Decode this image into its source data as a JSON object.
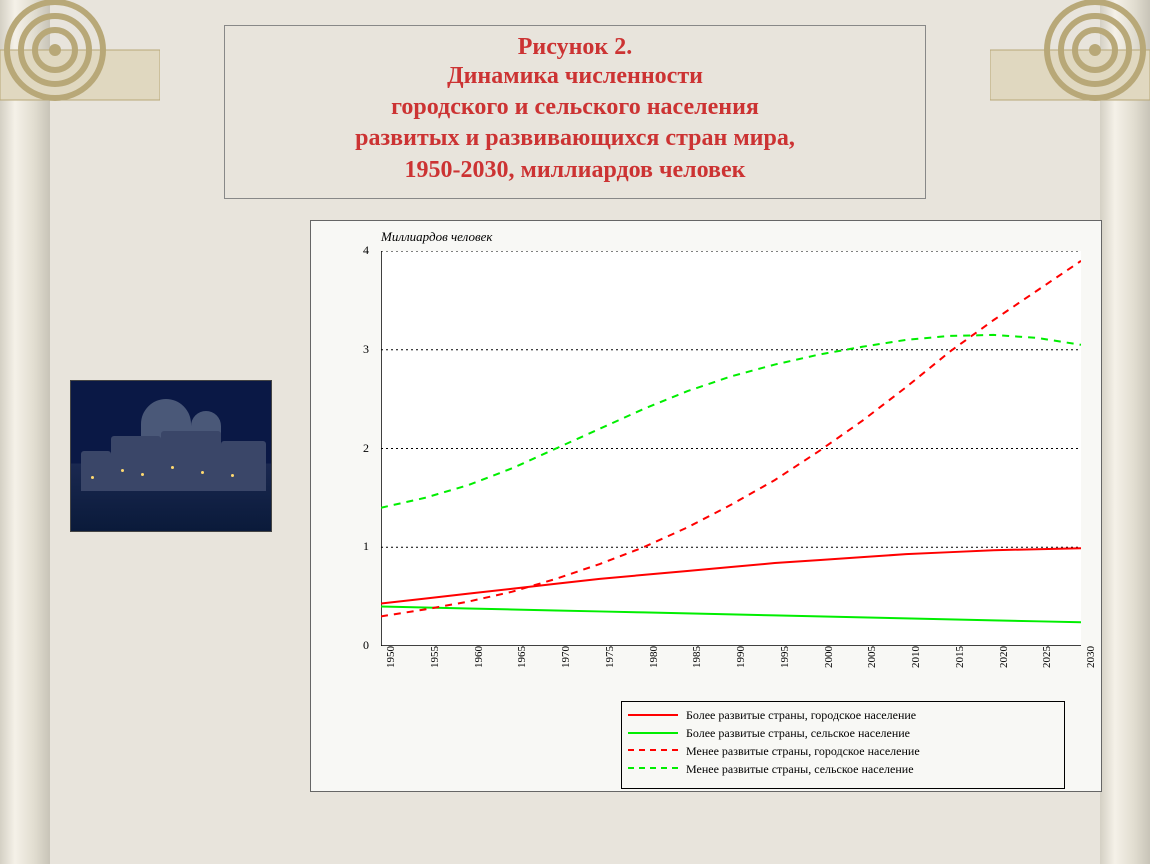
{
  "title": {
    "figure_num": "Рисунок 2.",
    "lines": [
      "Динамика численности",
      "городского и сельского населения",
      "развитых и развивающихся стран мира,",
      "1950-2030, миллиардов человек"
    ],
    "color": "#cc3333",
    "fontsize": 24,
    "fontweight": "bold"
  },
  "chart": {
    "type": "line",
    "y_axis_label": "Миллиардов человек",
    "y_axis_label_fontsize": 13,
    "y_axis_label_style": "italic",
    "xlim": [
      1950,
      2030
    ],
    "ylim": [
      0,
      4
    ],
    "xtick_step": 5,
    "ytick_step": 1,
    "xticks": [
      1950,
      1955,
      1960,
      1965,
      1970,
      1975,
      1980,
      1985,
      1990,
      1995,
      2000,
      2005,
      2010,
      2015,
      2020,
      2025,
      2030
    ],
    "yticks": [
      0,
      1,
      2,
      3,
      4
    ],
    "grid_color": "#000000",
    "grid_dash": "2,3",
    "axis_color": "#000000",
    "background_color": "#ffffff",
    "line_width": 2,
    "tick_fontsize": 12,
    "series": [
      {
        "name": "Более развитые страны, городское население",
        "color": "#ff0000",
        "style": "solid",
        "x": [
          1950,
          1955,
          1960,
          1965,
          1970,
          1975,
          1980,
          1985,
          1990,
          1995,
          2000,
          2005,
          2010,
          2015,
          2020,
          2025,
          2030
        ],
        "y": [
          0.43,
          0.48,
          0.53,
          0.58,
          0.63,
          0.68,
          0.72,
          0.76,
          0.8,
          0.84,
          0.87,
          0.9,
          0.93,
          0.95,
          0.97,
          0.98,
          0.99
        ]
      },
      {
        "name": "Более развитые страны, сельское население",
        "color": "#00ee00",
        "style": "solid",
        "x": [
          1950,
          1955,
          1960,
          1965,
          1970,
          1975,
          1980,
          1985,
          1990,
          1995,
          2000,
          2005,
          2010,
          2015,
          2020,
          2025,
          2030
        ],
        "y": [
          0.4,
          0.39,
          0.38,
          0.37,
          0.36,
          0.35,
          0.34,
          0.33,
          0.32,
          0.31,
          0.3,
          0.29,
          0.28,
          0.27,
          0.26,
          0.25,
          0.24
        ]
      },
      {
        "name": "Менее развитые страны, городское население",
        "color": "#ff0000",
        "style": "dashed",
        "x": [
          1950,
          1955,
          1960,
          1965,
          1970,
          1975,
          1980,
          1985,
          1990,
          1995,
          2000,
          2005,
          2010,
          2015,
          2020,
          2025,
          2030
        ],
        "y": [
          0.3,
          0.37,
          0.45,
          0.55,
          0.68,
          0.83,
          1.0,
          1.2,
          1.43,
          1.68,
          1.97,
          2.28,
          2.62,
          2.98,
          3.3,
          3.6,
          3.9
        ]
      },
      {
        "name": "Менее развитые страны, сельское население",
        "color": "#00ee00",
        "style": "dashed",
        "x": [
          1950,
          1955,
          1960,
          1965,
          1970,
          1975,
          1980,
          1985,
          1990,
          1995,
          2000,
          2005,
          2010,
          2015,
          2020,
          2025,
          2030
        ],
        "y": [
          1.4,
          1.5,
          1.63,
          1.8,
          2.0,
          2.2,
          2.4,
          2.58,
          2.73,
          2.85,
          2.95,
          3.03,
          3.1,
          3.14,
          3.15,
          3.12,
          3.05
        ]
      }
    ],
    "legend_position": "bottom-center",
    "legend_fontsize": 12,
    "legend_border": "#000000"
  },
  "side_image": {
    "description": "Night cityscape with domed building reflected on water (Venice)",
    "sky_color": "#0a1845",
    "building_color": "#3a4668",
    "light_color": "#ffd970"
  },
  "decor": {
    "column_gradient": [
      "#d4d0c4",
      "#f5f1e8",
      "#e0dccf",
      "#c8c4b8"
    ],
    "scroll_fill": "#e8e2d0",
    "scroll_stroke": "#b8a878"
  }
}
